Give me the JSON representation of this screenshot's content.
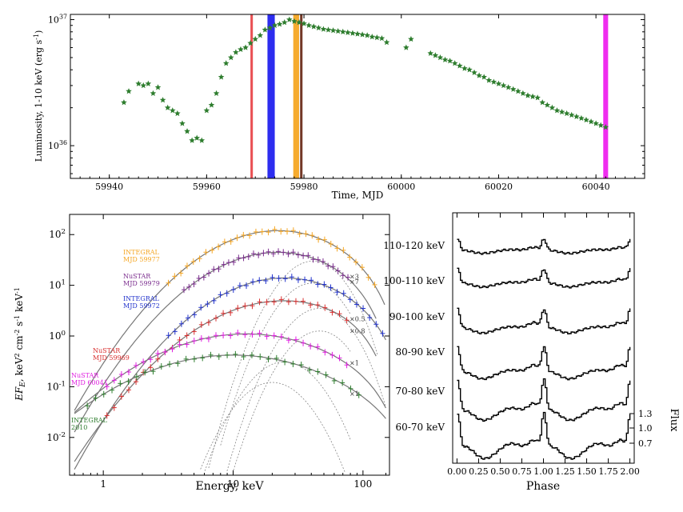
{
  "chart_data": [
    {
      "type": "scatter",
      "xlabel": "Time, MJD",
      "ylabel": "Luminosity, 1-10 keV (erg s",
      "ylabel_sup": "-1",
      "ylabel_close": ")",
      "xlim": [
        59932,
        60050
      ],
      "ylim": [
        5.5e+35,
        1.1e+37
      ],
      "yscale": "log",
      "xticks": [
        59940,
        59960,
        59980,
        60000,
        60020,
        60040
      ],
      "yticks": [
        {
          "value": 1e+36,
          "base": "10",
          "exp": "36"
        },
        {
          "value": 1e+37,
          "base": "10",
          "exp": "37"
        }
      ],
      "marker_color": "#2e7d2e",
      "bands": [
        {
          "from": 59969.0,
          "to": 59969.5,
          "color": "#e8474a"
        },
        {
          "from": 59972.5,
          "to": 59974.0,
          "color": "#2222ee"
        },
        {
          "from": 59977.8,
          "to": 59979.0,
          "color": "#f5a623"
        },
        {
          "from": 59979.2,
          "to": 59979.7,
          "color": "#6b2d1a"
        },
        {
          "from": 60041.5,
          "to": 60042.5,
          "color": "#ee22ee"
        }
      ],
      "x": [
        59943,
        59944,
        59946,
        59947,
        59948,
        59949,
        59950,
        59951,
        59952,
        59953,
        59954,
        59955,
        59956,
        59957,
        59958,
        59959,
        59960,
        59961,
        59962,
        59963,
        59964,
        59965,
        59966,
        59967,
        59968,
        59969,
        59970,
        59971,
        59972,
        59973,
        59974,
        59975,
        59976,
        59977,
        59978,
        59979,
        59980,
        59981,
        59982,
        59983,
        59984,
        59985,
        59986,
        59987,
        59988,
        59989,
        59990,
        59991,
        59992,
        59993,
        59994,
        59995,
        59996,
        59997,
        60001,
        60002,
        60006,
        60007,
        60008,
        60009,
        60010,
        60011,
        60012,
        60013,
        60014,
        60015,
        60016,
        60017,
        60018,
        60019,
        60020,
        60021,
        60022,
        60023,
        60024,
        60025,
        60026,
        60027,
        60028,
        60029,
        60030,
        60031,
        60032,
        60033,
        60034,
        60035,
        60036,
        60037,
        60038,
        60039,
        60040,
        60041,
        60042
      ],
      "y": [
        2.2e+36,
        2.7e+36,
        3.1e+36,
        3e+36,
        3.1e+36,
        2.6e+36,
        2.9e+36,
        2.3e+36,
        2e+36,
        1.9e+36,
        1.8e+36,
        1.5e+36,
        1.3e+36,
        1.1e+36,
        1.15e+36,
        1.1e+36,
        1.9e+36,
        2.1e+36,
        2.6e+36,
        3.5e+36,
        4.5e+36,
        5e+36,
        5.5e+36,
        5.8e+36,
        6e+36,
        6.5e+36,
        7e+36,
        7.5e+36,
        8.3e+36,
        8.6e+36,
        9e+36,
        9.2e+36,
        9.5e+36,
        1e+37,
        9.7e+36,
        9.5e+36,
        9.3e+36,
        9e+36,
        8.8e+36,
        8.6e+36,
        8.4e+36,
        8.3e+36,
        8.2e+36,
        8.1e+36,
        8e+36,
        7.9e+36,
        7.8e+36,
        7.7e+36,
        7.6e+36,
        7.5e+36,
        7.3e+36,
        7.2e+36,
        7.1e+36,
        6.6e+36,
        6e+36,
        7e+36,
        5.4e+36,
        5.2e+36,
        5e+36,
        4.8e+36,
        4.7e+36,
        4.5e+36,
        4.3e+36,
        4.1e+36,
        4e+36,
        3.8e+36,
        3.6e+36,
        3.5e+36,
        3.3e+36,
        3.2e+36,
        3.1e+36,
        3e+36,
        2.9e+36,
        2.8e+36,
        2.7e+36,
        2.6e+36,
        2.5e+36,
        2.45e+36,
        2.4e+36,
        2.2e+36,
        2.1e+36,
        2e+36,
        1.9e+36,
        1.85e+36,
        1.8e+36,
        1.75e+36,
        1.7e+36,
        1.65e+36,
        1.6e+36,
        1.55e+36,
        1.5e+36,
        1.45e+36,
        1.4e+36
      ]
    },
    {
      "type": "line",
      "xlabel": "Energy, keV",
      "ylabel_parts": {
        "main": "EF",
        "sub": "E",
        "rest": ", keV",
        "s1": "2",
        "mid": " cm",
        "s2": "-2",
        "mid2": " s",
        "s3": "-1",
        "mid3": " keV",
        "s4": "-1"
      },
      "xscale": "log",
      "yscale": "log",
      "xlim": [
        0.55,
        160
      ],
      "ylim": [
        0.0018,
        250
      ],
      "xticks": [
        {
          "value": 1,
          "label": "1"
        },
        {
          "value": 10,
          "label": "10"
        },
        {
          "value": 100,
          "label": "100"
        }
      ],
      "yticks": [
        {
          "value": 0.01,
          "base": "10",
          "exp": "-2"
        },
        {
          "value": 0.1,
          "base": "10",
          "exp": "-1"
        },
        {
          "value": 1,
          "base": "10",
          "exp": "0"
        },
        {
          "value": 10,
          "base": "10",
          "exp": "1"
        },
        {
          "value": 100,
          "base": "10",
          "exp": "2"
        }
      ],
      "series": [
        {
          "name": "INTEGRAL\nMJD 59977",
          "line1": "INTEGRAL",
          "line2": "MJD 59977",
          "color": "#f5a623",
          "scale_label": "×7",
          "amp": 120,
          "emin": 3,
          "emax": 130,
          "logpeak": 1.35,
          "w": 0.55,
          "cut": 140
        },
        {
          "name": "NuSTAR\nMJD 59979",
          "line1": "NuSTAR",
          "line2": "MJD 59979",
          "color": "#7b2d8e",
          "scale_label": "×3",
          "amp": 45,
          "emin": 4,
          "emax": 80,
          "logpeak": 1.35,
          "w": 0.55,
          "cut": 120
        },
        {
          "name": "INTEGRAL\nMJD 59972",
          "line1": "INTEGRAL",
          "line2": "MJD 59972",
          "color": "#2233cc",
          "scale_label": "×0.8",
          "amp": 14,
          "emin": 3,
          "emax": 150,
          "logpeak": 1.4,
          "w": 0.55,
          "cut": 160
        },
        {
          "name": "NuSTAR\nMJD 59969",
          "line1": "NuSTAR",
          "line2": "MJD 59969",
          "color": "#d93030",
          "scale_label": "×0.5",
          "amp": 5.0,
          "emin": 1,
          "emax": 80,
          "logpeak": 1.4,
          "w": 0.6,
          "cut": 120
        },
        {
          "name": "NuSTAR\nMJD 60041",
          "line1": "NuSTAR",
          "line2": "MJD 60041",
          "color": "#e020e0",
          "scale_label": "×1",
          "amp": 1.1,
          "emin": 1,
          "emax": 80,
          "logpeak": 1.1,
          "w": 0.7,
          "cut": 150
        },
        {
          "name": "INTEGRAL\n2010",
          "line1": "INTEGRAL",
          "line2": "2010",
          "color": "#2e7d2e",
          "scale_label": "×1",
          "amp": 0.42,
          "emin": 0.7,
          "emax": 100,
          "logpeak": 1.0,
          "w": 0.75,
          "cut": 200
        }
      ]
    },
    {
      "type": "line",
      "xlabel": "Phase",
      "ylabel": "Flux",
      "xlim": [
        -0.05,
        2.05
      ],
      "xticks": [
        "0.00",
        "0.25",
        "0.50",
        "0.75",
        "1.00",
        "1.25",
        "1.50",
        "1.75",
        "2.00"
      ],
      "yticks": [
        "0.7",
        "1.0",
        "1.3"
      ],
      "series": [
        {
          "name": "110-120 keV",
          "peak": 0.35,
          "base": 0.05
        },
        {
          "name": "100-110 keV",
          "peak": 0.45,
          "base": 0.06
        },
        {
          "name": "90-100 keV",
          "peak": 0.6,
          "base": 0.08
        },
        {
          "name": "80-90 keV",
          "peak": 0.8,
          "base": 0.12
        },
        {
          "name": "70-80 keV",
          "peak": 1.0,
          "base": 0.2
        },
        {
          "name": "60-70 keV",
          "peak": 1.1,
          "base": 0.28
        }
      ]
    }
  ]
}
